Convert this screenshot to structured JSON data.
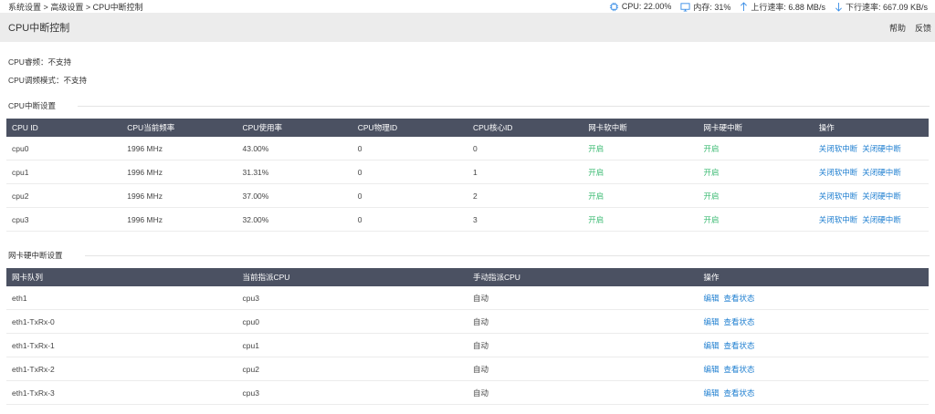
{
  "breadcrumb": [
    "系统设置",
    "高级设置",
    "CPU中断控制"
  ],
  "breadcrumb_sep": ">",
  "stats": {
    "cpu": "CPU: 22.00%",
    "memory": "内存: 31%",
    "upload": "上行速率: 6.88 MB/s",
    "download": "下行速率: 667.09 KB/s"
  },
  "header": {
    "title": "CPU中断控制",
    "help": "帮助",
    "feedback": "反馈"
  },
  "info": {
    "freq_label": "CPU睿频：",
    "freq_value": "不支持",
    "mode_label": "CPU调频模式：",
    "mode_value": "不支持"
  },
  "cpu_section": {
    "title": "CPU中断设置",
    "columns": [
      "CPU ID",
      "CPU当前频率",
      "CPU使用率",
      "CPU物理ID",
      "CPU核心ID",
      "网卡软中断",
      "网卡硬中断",
      "操作"
    ],
    "rows": [
      {
        "id": "cpu0",
        "freq": "1996 MHz",
        "usage": "43.00%",
        "phys": "0",
        "core": "0",
        "soft": "开启",
        "hard": "开启"
      },
      {
        "id": "cpu1",
        "freq": "1996 MHz",
        "usage": "31.31%",
        "phys": "0",
        "core": "1",
        "soft": "开启",
        "hard": "开启"
      },
      {
        "id": "cpu2",
        "freq": "1996 MHz",
        "usage": "37.00%",
        "phys": "0",
        "core": "2",
        "soft": "开启",
        "hard": "开启"
      },
      {
        "id": "cpu3",
        "freq": "1996 MHz",
        "usage": "32.00%",
        "phys": "0",
        "core": "3",
        "soft": "开启",
        "hard": "开启"
      }
    ],
    "action_soft": "关闭软中断",
    "action_hard": "关闭硬中断"
  },
  "nic_section": {
    "title": "网卡硬中断设置",
    "columns": [
      "网卡队列",
      "当前指派CPU",
      "手动指派CPU",
      "操作"
    ],
    "rows": [
      {
        "queue": "eth1",
        "cpu": "cpu3",
        "manual": "自动"
      },
      {
        "queue": "eth1-TxRx-0",
        "cpu": "cpu0",
        "manual": "自动"
      },
      {
        "queue": "eth1-TxRx-1",
        "cpu": "cpu1",
        "manual": "自动"
      },
      {
        "queue": "eth1-TxRx-2",
        "cpu": "cpu2",
        "manual": "自动"
      },
      {
        "queue": "eth1-TxRx-3",
        "cpu": "cpu3",
        "manual": "自动"
      }
    ],
    "action_edit": "编辑",
    "action_view": "查看状态"
  },
  "colors": {
    "header_bg": "#4b5162",
    "on": "#3dbb74",
    "link": "#1f7fd0",
    "icon": "#3a8ee6"
  }
}
